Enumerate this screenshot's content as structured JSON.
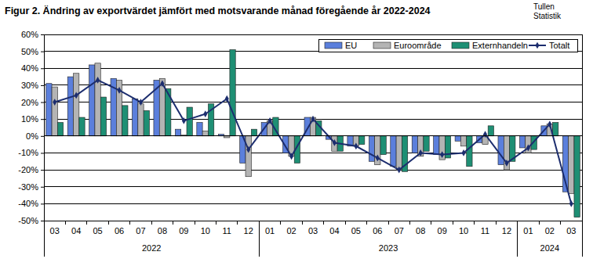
{
  "chart_data": {
    "type": "bar",
    "title": "Figur 2. Ändring av exportvärdet jämfört med motsvarande månad föregående år 2022-2024",
    "annotations": [
      "Tullen",
      "Statistik"
    ],
    "categories": [
      "03",
      "04",
      "05",
      "06",
      "07",
      "08",
      "09",
      "10",
      "11",
      "12",
      "01",
      "02",
      "03",
      "04",
      "05",
      "06",
      "07",
      "08",
      "09",
      "10",
      "11",
      "12",
      "01",
      "02",
      "03"
    ],
    "category_groups": [
      {
        "name": "2022",
        "size": 10
      },
      {
        "name": "2023",
        "size": 12
      },
      {
        "name": "2024",
        "size": 3
      }
    ],
    "series": [
      {
        "name": "EU",
        "type": "bar",
        "color": "#5b7fdc",
        "values": [
          31,
          35,
          42,
          34,
          22,
          33,
          4,
          8,
          1,
          -16,
          8,
          -10,
          11,
          -2,
          -6,
          -15,
          -18,
          -10,
          -11,
          -3,
          -4,
          -17,
          -7,
          6,
          -33
        ]
      },
      {
        "name": "Euroområde",
        "type": "bar",
        "color": "#b4b4b4",
        "values": [
          29,
          37,
          43,
          33,
          19,
          34,
          0.5,
          3,
          -1,
          -24,
          9,
          -12,
          11,
          -9,
          -6,
          -17,
          -20,
          -12,
          -14,
          -6,
          -5,
          -20,
          -10,
          7,
          -34
        ]
      },
      {
        "name": "Externhandeln",
        "type": "bar",
        "color": "#1e8f74",
        "values": [
          8,
          11,
          23,
          18,
          15,
          28,
          17,
          19,
          51,
          4,
          11,
          -16,
          9,
          -9,
          -5,
          -11,
          -21,
          -9,
          -13,
          -18,
          6,
          -15,
          -8,
          8,
          -48
        ]
      },
      {
        "name": "Totalt",
        "type": "line",
        "color": "#1c2d6e",
        "marker": "diamond",
        "values": [
          20,
          24,
          33,
          27,
          20,
          31,
          9,
          13,
          22,
          -8,
          9,
          -12,
          10,
          -4,
          -6,
          -13,
          -20,
          -10,
          -11,
          -10,
          1,
          -16,
          -7,
          7,
          -40
        ]
      }
    ],
    "ylim": [
      -50,
      60
    ],
    "yticks": [
      {
        "value": -50,
        "label": "-50%"
      },
      {
        "value": -40,
        "label": "-40%"
      },
      {
        "value": -30,
        "label": "-30%"
      },
      {
        "value": -20,
        "label": "-20%"
      },
      {
        "value": -10,
        "label": "-10%"
      },
      {
        "value": 0,
        "label": "0%"
      },
      {
        "value": 10,
        "label": "10%"
      },
      {
        "value": 20,
        "label": "20%"
      },
      {
        "value": 30,
        "label": "30%"
      },
      {
        "value": 40,
        "label": "40%"
      },
      {
        "value": 50,
        "label": "50%"
      },
      {
        "value": 60,
        "label": "60%"
      }
    ],
    "grid": true,
    "legend": "top-right"
  }
}
